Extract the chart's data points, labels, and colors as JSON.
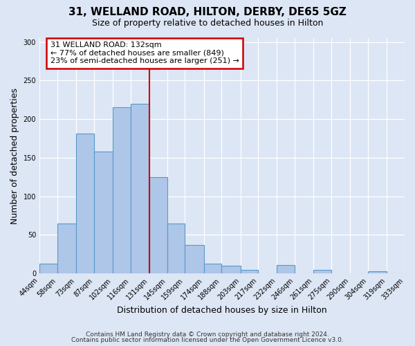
{
  "title": "31, WELLAND ROAD, HILTON, DERBY, DE65 5GZ",
  "subtitle": "Size of property relative to detached houses in Hilton",
  "xlabel": "Distribution of detached houses by size in Hilton",
  "ylabel": "Number of detached properties",
  "bin_edges": [
    44,
    58,
    73,
    87,
    102,
    116,
    131,
    145,
    159,
    174,
    188,
    203,
    217,
    232,
    246,
    261,
    275,
    290,
    304,
    319,
    333
  ],
  "bar_heights": [
    13,
    65,
    181,
    158,
    215,
    220,
    125,
    65,
    37,
    13,
    10,
    5,
    0,
    11,
    0,
    5,
    0,
    0,
    3,
    0
  ],
  "bar_fill_color": "#aec6e8",
  "bar_edge_color": "#5599cc",
  "property_line_x": 131,
  "property_line_color": "#cc0000",
  "annotation_title": "31 WELLAND ROAD: 132sqm",
  "annotation_line1": "← 77% of detached houses are smaller (849)",
  "annotation_line2": "23% of semi-detached houses are larger (251) →",
  "annotation_box_color": "#cc0000",
  "ylim": [
    0,
    305
  ],
  "yticks": [
    0,
    50,
    100,
    150,
    200,
    250,
    300
  ],
  "bg_color": "#dde6f5",
  "plot_bg_color": "#dde6f5",
  "footer1": "Contains HM Land Registry data © Crown copyright and database right 2024.",
  "footer2": "Contains public sector information licensed under the Open Government Licence v3.0."
}
